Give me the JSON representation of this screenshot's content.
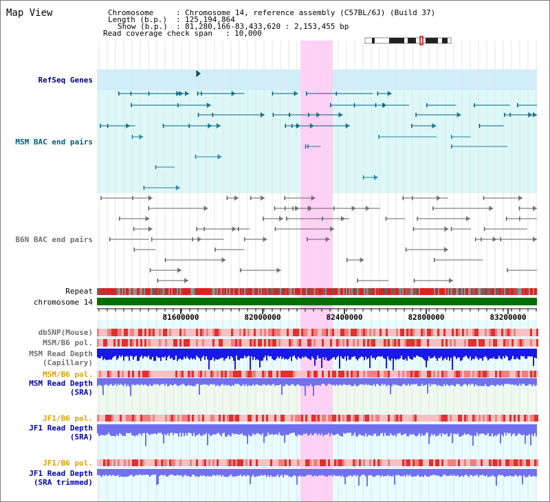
{
  "header": {
    "title": "Map View",
    "chromosome_label": "Chromosome",
    "chromosome_value": "Chromosome 14, reference assembly (C57BL/6J) (Build 37)",
    "length_label": "Length (b.p.)",
    "length_value": "125,194,864",
    "show_label": "Show (b.p.)",
    "show_value": "81,280,166-83,433,620 : 2,153,455 bp",
    "coverage_label": "Read coverage check span",
    "coverage_value": "10,000"
  },
  "tracks": {
    "refseq": "RefSeq Genes",
    "msm_bac": "MSM BAC end pairs",
    "b6n_bac": "B6N BAC end pairs",
    "repeat": "Repeat",
    "chromosome": "chromosome 14",
    "dbsnp": "dbSNP(Mouse)",
    "msm_b6_pol_1": "MSM/B6 pol.",
    "msm_depth_cap_1": "MSM Read Depth",
    "msm_depth_cap_2": "(Capillary)",
    "msm_b6_pol_2": "MSM/B6 pol.",
    "msm_depth_sra_1": "MSM Read Depth",
    "msm_depth_sra_2": "(SRA)",
    "jf1_b6_pol_1": "JF1/B6 pol.",
    "jf1_depth_sra_1": "JF1 Read Depth",
    "jf1_depth_sra_2": "(SRA)",
    "jf1_b6_pol_2": "JF1/B6 pol.",
    "jf1_depth_trim_1": "JF1 Read Depth",
    "jf1_depth_trim_2": "(SRA trimmed)"
  },
  "axis": {
    "ticks": [
      "81600000",
      "82000000",
      "82400000",
      "82800000",
      "83200000"
    ]
  },
  "colors": {
    "highlight": "#ffd0f5",
    "refseq_bg": "#cfeefa",
    "bac_bg": "#dcf8f8",
    "gene": "#006080",
    "bac_gray": "#606060",
    "chromosome": "#007000",
    "depth_dark": "#1818e8",
    "depth_light": "#7070f0",
    "pol_light": "#f8c0c0",
    "pol_dark": "#e03030"
  }
}
